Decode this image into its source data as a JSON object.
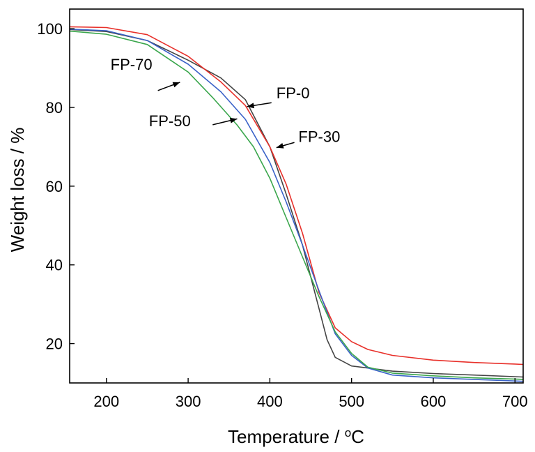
{
  "chart_data": {
    "type": "line",
    "xlabel": "Temperature / °C",
    "xlabel_main": "Temperature / ",
    "xlabel_unit_sup": "o",
    "xlabel_unit": "C",
    "ylabel": "Weight loss / %",
    "xlim": [
      155,
      710
    ],
    "ylim": [
      10,
      105
    ],
    "xticks": [
      "200",
      "300",
      "400",
      "500",
      "600",
      "700"
    ],
    "yticks": [
      "20",
      "40",
      "60",
      "80",
      "100"
    ],
    "grid": false,
    "series": [
      {
        "name": "FP-0",
        "color": "#444444",
        "x": [
          155,
          200,
          250,
          300,
          340,
          370,
          400,
          420,
          440,
          450,
          460,
          470,
          480,
          500,
          550,
          600,
          650,
          700,
          710
        ],
        "y": [
          99.8,
          99.3,
          97,
          92,
          87.5,
          82,
          70,
          58,
          45,
          37,
          29,
          21,
          16.5,
          14.3,
          13,
          12.4,
          12,
          11.6,
          11.5
        ]
      },
      {
        "name": "FP-30",
        "color": "#e8302a",
        "x": [
          155,
          200,
          250,
          300,
          340,
          370,
          400,
          420,
          440,
          460,
          480,
          500,
          520,
          550,
          600,
          650,
          700,
          710
        ],
        "y": [
          100.5,
          100.3,
          98.5,
          93,
          86.5,
          80.5,
          70,
          60.5,
          48,
          33,
          24,
          20.5,
          18.5,
          17,
          15.8,
          15.2,
          14.8,
          14.7
        ]
      },
      {
        "name": "FP-50",
        "color": "#3a62c8",
        "x": [
          155,
          200,
          250,
          300,
          340,
          370,
          400,
          420,
          440,
          460,
          480,
          500,
          520,
          550,
          600,
          650,
          700,
          710
        ],
        "y": [
          99.9,
          99.5,
          97,
          91,
          84,
          77,
          66,
          56,
          45,
          33.5,
          22.5,
          17,
          13.8,
          12,
          11.3,
          10.9,
          10.5,
          10.4
        ]
      },
      {
        "name": "FP-70",
        "color": "#3aa64c",
        "x": [
          155,
          200,
          250,
          300,
          330,
          360,
          380,
          400,
          420,
          440,
          460,
          480,
          500,
          520,
          550,
          600,
          650,
          700,
          710
        ],
        "y": [
          99.4,
          98.6,
          96,
          89,
          82.5,
          75.5,
          70,
          62,
          52,
          42,
          32,
          23,
          17.5,
          14,
          12.5,
          11.8,
          11.3,
          11,
          10.9
        ]
      }
    ],
    "annotations": [
      {
        "text": "FP-70",
        "tx": 205,
        "ty": 89.6,
        "ax1": 263,
        "ay1": 84.3,
        "ax2": 290,
        "ay2": 86.4
      },
      {
        "text": "FP-0",
        "tx": 408,
        "ty": 82.3,
        "ax1": 402,
        "ay1": 81.2,
        "ax2": 372,
        "ay2": 80.2
      },
      {
        "text": "FP-50",
        "tx": 252,
        "ty": 75.2,
        "ax1": 330,
        "ay1": 75.6,
        "ax2": 360,
        "ay2": 77.1
      },
      {
        "text": "FP-30",
        "tx": 435,
        "ty": 71.2,
        "ax1": 430,
        "ay1": 71.1,
        "ax2": 408,
        "ay2": 69.8
      }
    ]
  }
}
